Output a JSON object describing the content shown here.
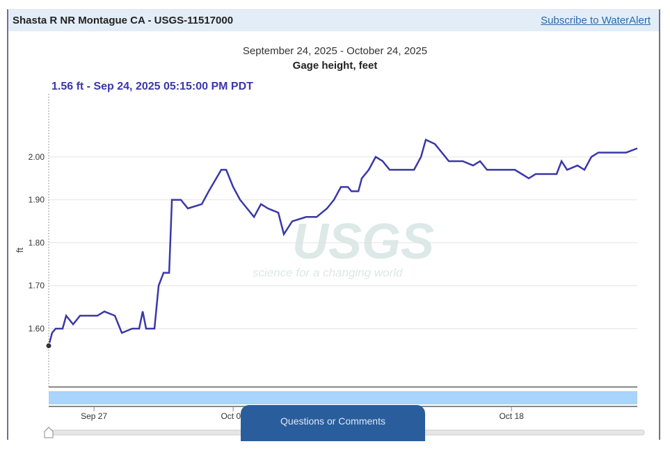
{
  "header": {
    "title": "Shasta R NR Montague CA - USGS-11517000",
    "subscribe_link": "Subscribe to WaterAlert"
  },
  "feedback_button": "Questions or Comments",
  "watermark": {
    "logo": "USGS",
    "tagline": "science for a changing world"
  },
  "chart_data": {
    "type": "line",
    "title": "September 24, 2025 - October 24, 2025",
    "subtitle": "Gage height, feet",
    "tooltip": "1.56 ft - Sep 24, 2025 05:15:00 PM PDT",
    "ylabel": "ft",
    "xlabel": "",
    "x_units": "days since Sep 24, 2025 05:15 PM PDT",
    "xlim": [
      0,
      29.61
    ],
    "ylim": [
      1.464,
      2.147
    ],
    "yticks": [
      {
        "v": 1.6,
        "label": "1.60"
      },
      {
        "v": 1.7,
        "label": "1.70"
      },
      {
        "v": 1.8,
        "label": "1.80"
      },
      {
        "v": 1.9,
        "label": "1.90"
      },
      {
        "v": 2.0,
        "label": "2.00"
      }
    ],
    "xticks": [
      {
        "v": 2.28,
        "label": "Sep 27"
      },
      {
        "v": 9.28,
        "label": "Oct 04"
      },
      {
        "v": 23.28,
        "label": "Oct 18"
      }
    ],
    "grid": true,
    "series": [
      {
        "name": "Gage height",
        "color": "#3a37a8",
        "x": [
          0,
          0.17,
          0.35,
          0.7,
          0.88,
          1.23,
          1.58,
          1.93,
          2.45,
          2.8,
          3.33,
          3.68,
          4.2,
          4.55,
          4.73,
          4.9,
          5.32,
          5.53,
          5.78,
          6.06,
          6.2,
          6.65,
          7.0,
          7.7,
          8.05,
          8.68,
          8.93,
          9.28,
          9.63,
          10.33,
          10.68,
          11.03,
          11.55,
          11.83,
          12.25,
          12.95,
          13.48,
          14.0,
          14.35,
          14.7,
          15.05,
          15.23,
          15.58,
          15.75,
          16.1,
          16.45,
          16.8,
          17.15,
          17.68,
          18.38,
          18.73,
          18.97,
          19.43,
          19.78,
          20.13,
          20.83,
          21.35,
          21.7,
          22.05,
          23.45,
          23.8,
          24.15,
          24.5,
          25.2,
          25.55,
          25.8,
          26.08,
          26.6,
          26.95,
          27.3,
          27.65,
          28.35,
          29.05,
          29.61
        ],
        "y": [
          1.56,
          1.59,
          1.6,
          1.6,
          1.63,
          1.61,
          1.63,
          1.63,
          1.63,
          1.64,
          1.63,
          1.59,
          1.6,
          1.6,
          1.64,
          1.6,
          1.6,
          1.7,
          1.73,
          1.73,
          1.9,
          1.9,
          1.88,
          1.89,
          1.92,
          1.97,
          1.97,
          1.93,
          1.9,
          1.86,
          1.89,
          1.88,
          1.87,
          1.82,
          1.85,
          1.86,
          1.86,
          1.88,
          1.9,
          1.93,
          1.93,
          1.92,
          1.92,
          1.95,
          1.97,
          2.0,
          1.99,
          1.97,
          1.97,
          1.97,
          2.0,
          2.04,
          2.03,
          2.01,
          1.99,
          1.99,
          1.98,
          1.99,
          1.97,
          1.97,
          1.96,
          1.95,
          1.96,
          1.96,
          1.96,
          1.99,
          1.97,
          1.98,
          1.97,
          2.0,
          2.01,
          2.01,
          2.01,
          2.02
        ]
      }
    ]
  },
  "colors": {
    "line": "#3a37a8",
    "header_bg": "#e3edf7",
    "navigator": "#a9d4fb",
    "button": "#2a5d9c"
  }
}
